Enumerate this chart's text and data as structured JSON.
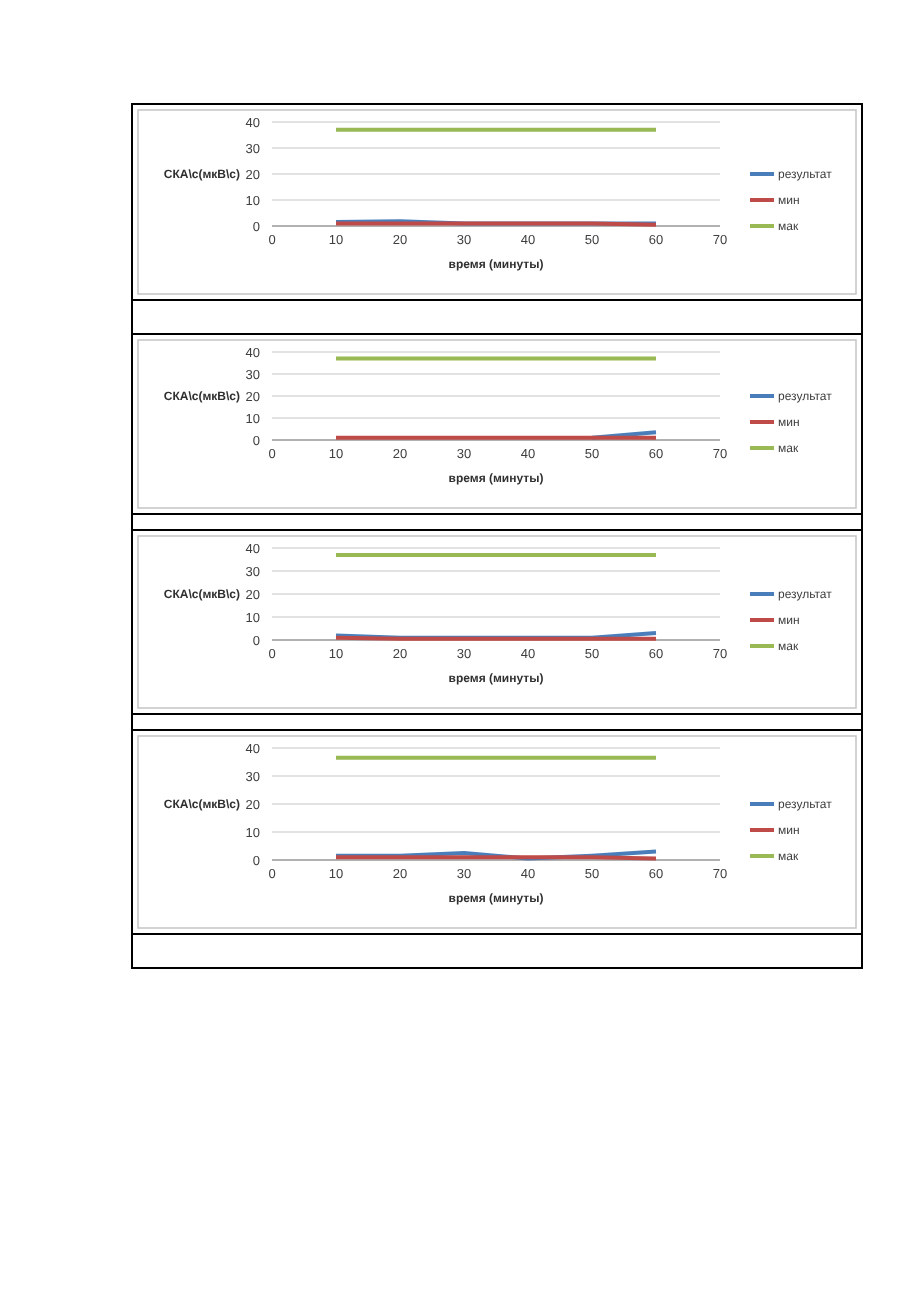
{
  "chart_data": [
    {
      "type": "line",
      "xlabel": "время (минуты)",
      "ylabel": "СКА\\с(мкВ\\с)",
      "x": [
        10,
        20,
        30,
        40,
        50,
        60
      ],
      "xlim": [
        0,
        70
      ],
      "xticks": [
        0,
        10,
        20,
        30,
        40,
        50,
        60,
        70
      ],
      "ylim": [
        0,
        40
      ],
      "yticks": [
        0,
        10,
        20,
        30,
        40
      ],
      "grid": "y",
      "legend": "right",
      "series": [
        {
          "name": "результат",
          "color": "#4a7ebb",
          "values": [
            1.5,
            1.8,
            1,
            1,
            1,
            1
          ]
        },
        {
          "name": "мин",
          "color": "#be4b48",
          "values": [
            1,
            1,
            1,
            1,
            1,
            0.5
          ]
        },
        {
          "name": "мак",
          "color": "#98b954",
          "values": [
            37,
            37,
            37,
            37,
            37,
            37
          ]
        }
      ]
    },
    {
      "type": "line",
      "xlabel": "время (минуты)",
      "ylabel": "СКА\\с(мкВ\\с)",
      "x": [
        10,
        20,
        30,
        40,
        50,
        60
      ],
      "xlim": [
        0,
        70
      ],
      "xticks": [
        0,
        10,
        20,
        30,
        40,
        50,
        60,
        70
      ],
      "ylim": [
        0,
        40
      ],
      "yticks": [
        0,
        10,
        20,
        30,
        40
      ],
      "grid": "y",
      "legend": "right",
      "series": [
        {
          "name": "результат",
          "color": "#4a7ebb",
          "values": [
            null,
            null,
            null,
            null,
            1,
            3.5
          ]
        },
        {
          "name": "мин",
          "color": "#be4b48",
          "values": [
            1,
            1,
            1,
            1,
            1,
            1
          ]
        },
        {
          "name": "мак",
          "color": "#98b954",
          "values": [
            37,
            37,
            37,
            37,
            37,
            37
          ]
        }
      ]
    },
    {
      "type": "line",
      "xlabel": "время (минуты)",
      "ylabel": "СКА\\с(мкВ\\с)",
      "x": [
        10,
        20,
        30,
        40,
        50,
        60
      ],
      "xlim": [
        0,
        70
      ],
      "xticks": [
        0,
        10,
        20,
        30,
        40,
        50,
        60,
        70
      ],
      "ylim": [
        0,
        40
      ],
      "yticks": [
        0,
        10,
        20,
        30,
        40
      ],
      "grid": "y",
      "legend": "right",
      "series": [
        {
          "name": "результат",
          "color": "#4a7ebb",
          "values": [
            2,
            1,
            1,
            1,
            1,
            3
          ]
        },
        {
          "name": "мин",
          "color": "#be4b48",
          "values": [
            1,
            0.5,
            0.5,
            0.5,
            0.5,
            0.5
          ]
        },
        {
          "name": "мак",
          "color": "#98b954",
          "values": [
            37,
            37,
            37,
            37,
            37,
            37
          ]
        }
      ]
    },
    {
      "type": "line",
      "xlabel": "время (минуты)",
      "ylabel": "СКА\\с(мкВ\\с)",
      "x": [
        10,
        20,
        30,
        40,
        50,
        60
      ],
      "xlim": [
        0,
        70
      ],
      "xticks": [
        0,
        10,
        20,
        30,
        40,
        50,
        60,
        70
      ],
      "ylim": [
        0,
        40
      ],
      "yticks": [
        0,
        10,
        20,
        30,
        40
      ],
      "grid": "y",
      "legend": "right",
      "series": [
        {
          "name": "результат",
          "color": "#4a7ebb",
          "values": [
            1.5,
            1.5,
            2.5,
            0.5,
            1.5,
            3
          ]
        },
        {
          "name": "мин",
          "color": "#be4b48",
          "values": [
            1,
            1,
            1,
            1,
            1,
            0.5
          ]
        },
        {
          "name": "мак",
          "color": "#98b954",
          "values": [
            36.5,
            36.5,
            36.5,
            36.5,
            36.5,
            36.5
          ]
        }
      ]
    }
  ]
}
